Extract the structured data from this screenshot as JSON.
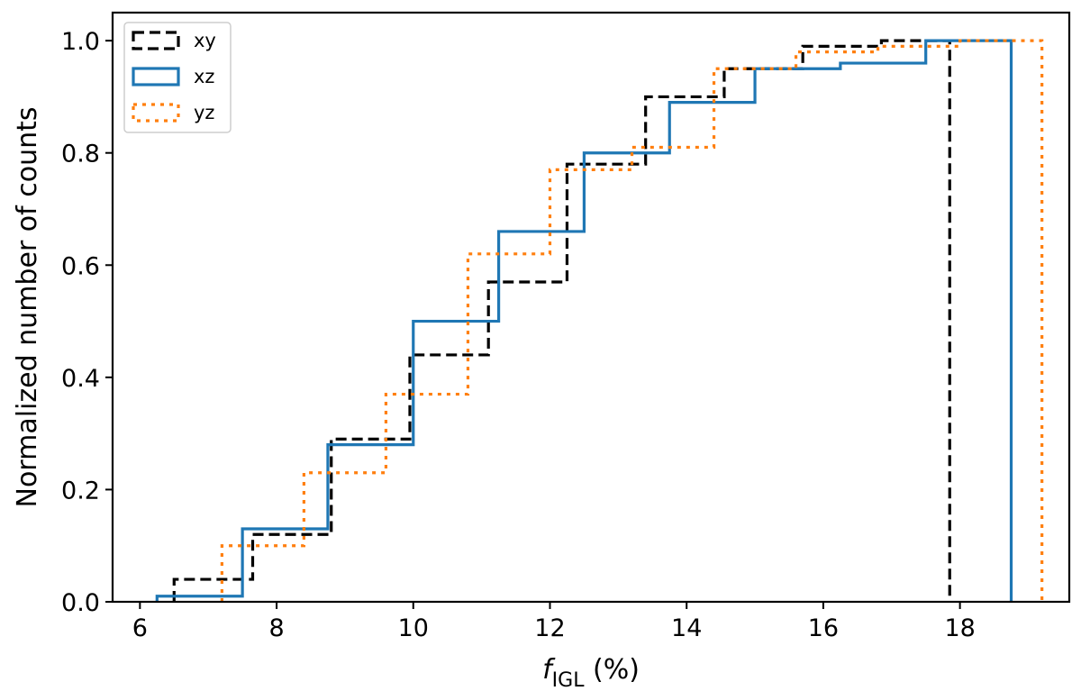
{
  "chart_data": {
    "type": "line",
    "subtype": "cumulative step histogram",
    "xlabel": "f",
    "xlabel_subscript": "IGL",
    "xlabel_suffix": " (%)",
    "ylabel": "Normalized number of counts",
    "xlim": [
      5.6,
      19.6
    ],
    "ylim": [
      0.0,
      1.05
    ],
    "xticks": [
      6,
      8,
      10,
      12,
      14,
      16,
      18
    ],
    "yticks": [
      0.0,
      0.2,
      0.4,
      0.6,
      0.8,
      1.0
    ],
    "xtick_labels": [
      "6",
      "8",
      "10",
      "12",
      "14",
      "16",
      "18"
    ],
    "ytick_labels": [
      "0.0",
      "0.2",
      "0.4",
      "0.6",
      "0.8",
      "1.0"
    ],
    "grid": false,
    "legend_position": "top-left",
    "series": [
      {
        "name": "xy",
        "color": "#000000",
        "style": "dashed",
        "edges": [
          6.5,
          7.65,
          8.8,
          9.95,
          11.1,
          12.25,
          13.4,
          14.55,
          15.7,
          16.85,
          17.85
        ],
        "values": [
          0.04,
          0.12,
          0.29,
          0.44,
          0.57,
          0.78,
          0.9,
          0.95,
          0.99,
          1.0
        ]
      },
      {
        "name": "xz",
        "color": "#1f77b4",
        "style": "solid",
        "edges": [
          6.25,
          7.5,
          8.75,
          10.0,
          11.25,
          12.5,
          13.75,
          15.0,
          16.25,
          17.5,
          18.75
        ],
        "values": [
          0.01,
          0.13,
          0.28,
          0.5,
          0.66,
          0.8,
          0.89,
          0.95,
          0.96,
          1.0
        ]
      },
      {
        "name": "yz",
        "color": "#ff7f0e",
        "style": "dotted",
        "edges": [
          7.2,
          8.4,
          9.6,
          10.8,
          12.0,
          13.2,
          14.4,
          15.6,
          16.8,
          18.0,
          19.2
        ],
        "values": [
          0.1,
          0.23,
          0.37,
          0.62,
          0.77,
          0.81,
          0.95,
          0.98,
          0.99,
          1.0
        ]
      }
    ]
  }
}
